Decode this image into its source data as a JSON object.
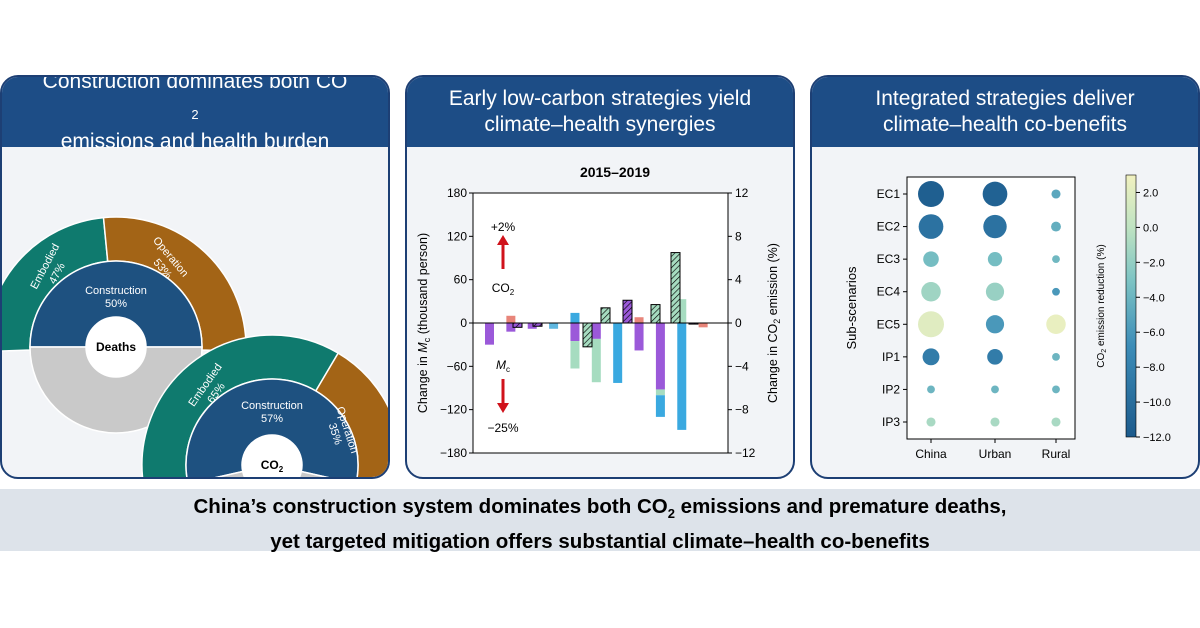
{
  "panel1": {
    "title_line1": "Construction dominates both CO",
    "title_line1_sub": "2",
    "title_line2": "emissions and health burden",
    "deaths": {
      "center": "Deaths",
      "outer": [
        {
          "label": "Embodied",
          "pct": "47%",
          "share": 47,
          "color": "#0f7a6e"
        },
        {
          "label": "Operation",
          "pct": "53%",
          "share": 53,
          "color": "#a36416"
        }
      ],
      "inner": {
        "label": "Construction",
        "pct": "50%",
        "share": 50,
        "color": "#1e5180",
        "rest_color": "#c9c9c9"
      }
    },
    "co2": {
      "center": "CO",
      "center_sub": "2",
      "outer": [
        {
          "label": "Embodied",
          "pct": "65%",
          "share": 65,
          "color": "#0f7a6e"
        },
        {
          "label": "Operation",
          "pct": "35%",
          "share": 35,
          "color": "#a36416"
        }
      ],
      "inner": {
        "label": "Construction",
        "pct": "57%",
        "share": 57,
        "color": "#1e5180",
        "rest_color": "#c9c9c9"
      }
    }
  },
  "panel2": {
    "title_line1": "Early low-carbon strategies yield",
    "title_line2": "climate–health synergies",
    "annot_top": "+2%",
    "annot_co2": "CO",
    "annot_co2_sub": "2",
    "annot_m": "M",
    "annot_m_sub": "c",
    "annot_bottom": "−25%",
    "chart_data": {
      "type": "bar",
      "title": "2015–2019",
      "ylabel_left_pre": "Change in ",
      "ylabel_left_var": "M",
      "ylabel_left_sub": "c",
      "ylabel_left_post": " (thousand person)",
      "ylabel_right_pre": "Change in CO",
      "ylabel_right_sub": "2",
      "ylabel_right_post": " emission (%)",
      "ylim_left": [
        -180,
        180
      ],
      "ylim_right": [
        -12,
        12
      ],
      "yticks_left": [
        "180",
        "120",
        "60",
        "0",
        "−60",
        "−120",
        "−180"
      ],
      "yticks_right": [
        "12",
        "8",
        "4",
        "0",
        "−4",
        "−8",
        "−12"
      ],
      "groups": 9,
      "series_mc": [
        {
          "group": 0,
          "segments": [
            {
              "value": -30,
              "color": "#9b59d9"
            }
          ]
        },
        {
          "group": 0,
          "segments": [
            {
              "value": 10,
              "color": "#e8857a"
            },
            {
              "value": -12,
              "color": "#9b59d9"
            }
          ]
        },
        {
          "group": 1,
          "segments": [
            {
              "value": -8,
              "color": "#9b59d9"
            }
          ]
        },
        {
          "group": 1,
          "segments": [
            {
              "value": -8,
              "color": "#5fb7e0"
            }
          ]
        },
        {
          "group": 2,
          "segments": [
            {
              "value": 14,
              "color": "#3aa9e0"
            },
            {
              "value": -25,
              "color": "#9b59d9"
            },
            {
              "value": -38,
              "color": "#a6dcc0"
            }
          ]
        },
        {
          "group": 3,
          "segments": [
            {
              "value": -22,
              "color": "#9b59d9"
            },
            {
              "value": -60,
              "color": "#a6dcc0"
            }
          ]
        },
        {
          "group": 3,
          "segments": [
            {
              "value": -83,
              "color": "#3aa9e0"
            }
          ]
        },
        {
          "group": 4,
          "segments": [
            {
              "value": 8,
              "color": "#e8857a"
            },
            {
              "value": -38,
              "color": "#9b59d9"
            }
          ]
        },
        {
          "group": 5,
          "segments": [
            {
              "value": -92,
              "color": "#9b59d9"
            },
            {
              "value": -8,
              "color": "#a6dcc0"
            },
            {
              "value": -30,
              "color": "#3aa9e0"
            }
          ]
        },
        {
          "group": 6,
          "segments": [
            {
              "value": 33,
              "color": "#a6dcc0"
            },
            {
              "value": -148,
              "color": "#3aa9e0"
            }
          ]
        },
        {
          "group": 7,
          "segments": [
            {
              "value": -6,
              "color": "#e8857a"
            }
          ]
        }
      ],
      "series_co2_hatched": [
        {
          "slot": 0,
          "value": -0.4,
          "color": "#9b59d9"
        },
        {
          "slot": 1,
          "value": -0.3,
          "color": "#9b59d9"
        },
        {
          "slot": 2,
          "value": -2.2,
          "color": "#a6dcc0"
        },
        {
          "slot": 3,
          "value": 1.4,
          "color": "#a6dcc0"
        },
        {
          "slot": 4,
          "value": 2.1,
          "color": "#9b59d9"
        },
        {
          "slot": 5,
          "value": 1.7,
          "color": "#a6dcc0"
        },
        {
          "slot": 6,
          "value": 6.5,
          "color": "#a6dcc0"
        },
        {
          "slot": 7,
          "value": -0.1,
          "color": "#9b59d9"
        }
      ]
    }
  },
  "panel3": {
    "title_line1": "Integrated strategies deliver",
    "title_line2": "climate–health co-benefits",
    "chart_data": {
      "type": "scatter",
      "ylabel": "Sub-scenarios",
      "x_categories": [
        "China",
        "Urban",
        "Rural"
      ],
      "y_categories": [
        "EC1",
        "EC2",
        "EC3",
        "EC4",
        "EC5",
        "IP1",
        "IP2",
        "IP3"
      ],
      "colorbar_label_pre": "CO",
      "colorbar_label_sub": "2",
      "colorbar_label_post": " emission reduction (%)",
      "colorbar_range": [
        -12,
        3
      ],
      "colorbar_ticks": [
        "2.0",
        "0.0",
        "−2.0",
        "−4.0",
        "−6.0",
        "−8.0",
        "−10.0",
        "−12.0"
      ],
      "points": [
        {
          "row": "EC1",
          "values": [
            -11.5,
            -11.2,
            -5.0
          ],
          "sizes": [
            1.0,
            0.95,
            0.35
          ]
        },
        {
          "row": "EC2",
          "values": [
            -9.5,
            -9.5,
            -4.5
          ],
          "sizes": [
            0.95,
            0.9,
            0.38
          ]
        },
        {
          "row": "EC3",
          "values": [
            -3.5,
            -3.5,
            -3.8
          ],
          "sizes": [
            0.6,
            0.55,
            0.3
          ]
        },
        {
          "row": "EC4",
          "values": [
            -1.5,
            -1.8,
            -6.0
          ],
          "sizes": [
            0.75,
            0.7,
            0.3
          ]
        },
        {
          "row": "EC5",
          "values": [
            2.0,
            -6.0,
            2.5
          ],
          "sizes": [
            1.0,
            0.7,
            0.75
          ]
        },
        {
          "row": "IP1",
          "values": [
            -8.5,
            -8.5,
            -4.0
          ],
          "sizes": [
            0.65,
            0.6,
            0.3
          ]
        },
        {
          "row": "IP2",
          "values": [
            -4.0,
            -4.0,
            -4.0
          ],
          "sizes": [
            0.3,
            0.3,
            0.3
          ]
        },
        {
          "row": "IP3",
          "values": [
            -1.0,
            -1.0,
            -1.0
          ],
          "sizes": [
            0.35,
            0.35,
            0.35
          ]
        }
      ]
    }
  },
  "footer": {
    "line1_pre": "China’s construction system dominates both CO",
    "line1_sub": "2",
    "line1_post": " emissions and premature deaths,",
    "line2": "yet targeted mitigation offers substantial climate–health co-benefits"
  }
}
